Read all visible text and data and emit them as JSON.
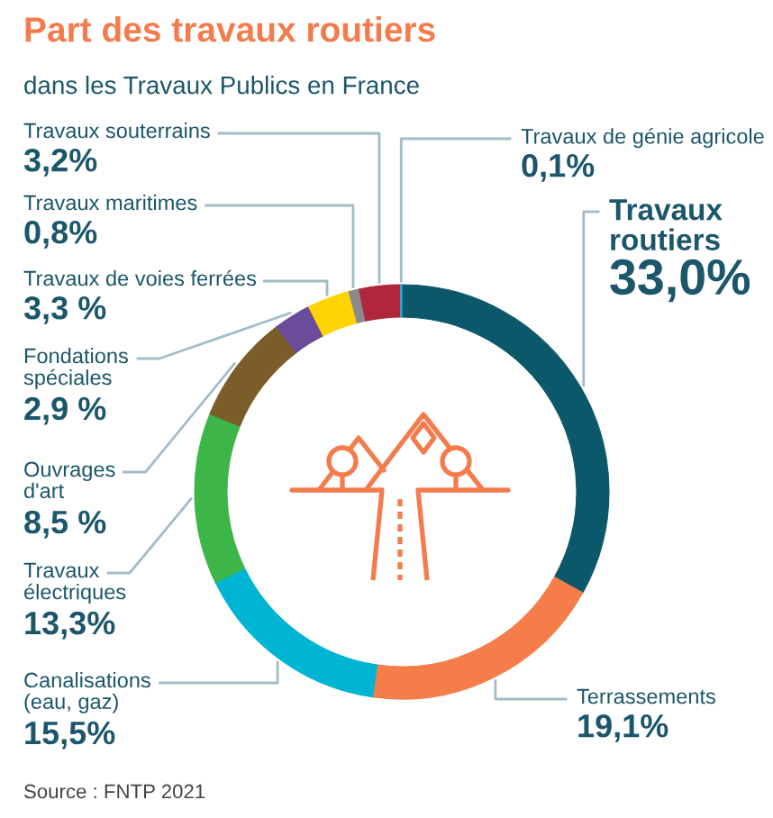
{
  "chart_data": {
    "type": "donut",
    "title": "Part des travaux routiers",
    "subtitle": "dans les Travaux Publics en France",
    "categories": [
      "Travaux routiers",
      "Terrassements",
      "Canalisations (eau, gaz)",
      "Travaux électriques",
      "Ouvrages d'art",
      "Fondations spéciales",
      "Travaux de voies ferrées",
      "Travaux maritimes",
      "Travaux souterrains",
      "Travaux de génie agricole"
    ],
    "values": [
      33.0,
      19.1,
      15.5,
      13.3,
      8.5,
      2.9,
      3.3,
      0.8,
      3.2,
      0.1
    ],
    "colors": [
      "#0c586b",
      "#f47d4a",
      "#00b5d3",
      "#3db549",
      "#7b5d29",
      "#6b4c9a",
      "#ffd400",
      "#8a8a8a",
      "#b0263a",
      "#2aa9e0"
    ],
    "value_labels": [
      "33,0%",
      "19,1%",
      "15,5%",
      "13,3%",
      "8,5 %",
      "2,9 %",
      "3,3 %",
      "0,8%",
      "3,2%",
      "0,1%"
    ],
    "annotations": [
      "Source : FNTP 2021"
    ]
  }
}
